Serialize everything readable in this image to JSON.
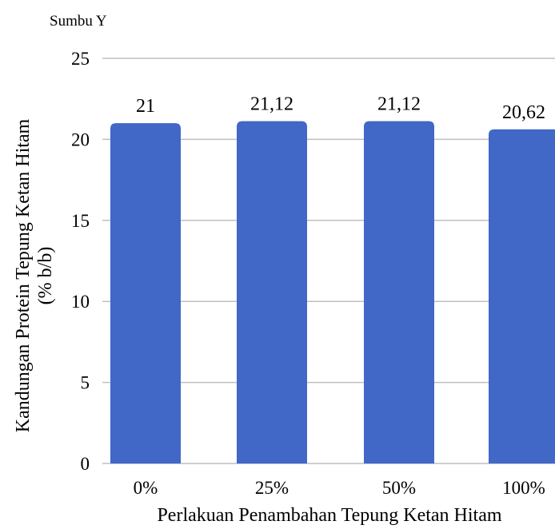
{
  "chart_data": {
    "type": "bar",
    "corner_label": "Sumbu Y",
    "xlabel": "Perlakuan Penambahan Tepung Ketan Hitam",
    "ylabel_line1": "Kandungan Protein Tepung Ketan Hitam",
    "ylabel_line2": "(% b/b)",
    "categories": [
      "0%",
      "25%",
      "50%",
      "100%"
    ],
    "values": [
      21,
      21.12,
      21.12,
      20.62
    ],
    "data_labels": [
      "21",
      "21,12",
      "21,12",
      "20,62"
    ],
    "ylim": [
      0,
      25
    ],
    "yticks": [
      0,
      5,
      10,
      15,
      20,
      25
    ],
    "grid": true,
    "bar_color": "#4167c7",
    "grid_color": "#bfbfbf"
  }
}
